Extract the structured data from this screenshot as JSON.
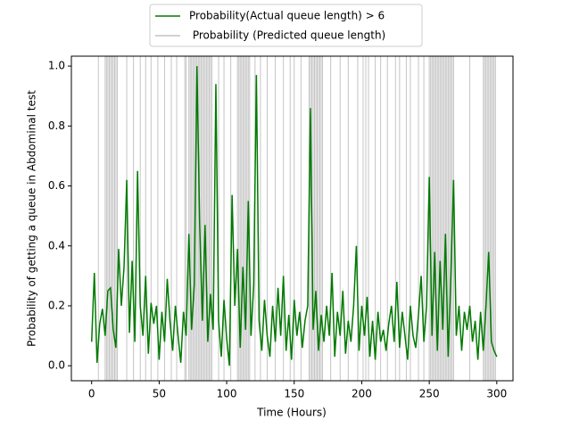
{
  "chart_data": {
    "type": "line",
    "xlabel": "Time (Hours)",
    "ylabel": "Probability of getting a queue in Abdominal test",
    "xlim": [
      -15,
      312
    ],
    "ylim": [
      -0.05,
      1.033
    ],
    "xticks": [
      0,
      50,
      100,
      150,
      200,
      250,
      300
    ],
    "yticks": [
      {
        "value": 0,
        "label": "0.0"
      },
      0.2,
      0.4,
      0.6,
      0.8,
      {
        "value": 1,
        "label": "1.0"
      }
    ],
    "legend": "upper center",
    "series": [
      {
        "name": "Probability(Actual queue length) > 6",
        "color": "#007a00",
        "x": [
          0,
          2,
          4,
          6,
          8,
          10,
          12,
          14,
          16,
          18,
          20,
          22,
          24,
          26,
          28,
          30,
          32,
          34,
          36,
          38,
          40,
          42,
          44,
          46,
          48,
          50,
          52,
          54,
          56,
          58,
          60,
          62,
          64,
          66,
          68,
          70,
          72,
          74,
          76,
          78,
          80,
          82,
          84,
          86,
          88,
          90,
          92,
          94,
          96,
          98,
          100,
          102,
          104,
          106,
          108,
          110,
          112,
          114,
          116,
          118,
          120,
          122,
          124,
          126,
          128,
          130,
          132,
          134,
          136,
          138,
          140,
          142,
          144,
          146,
          148,
          150,
          152,
          154,
          156,
          158,
          160,
          162,
          164,
          166,
          168,
          170,
          172,
          174,
          176,
          178,
          180,
          182,
          184,
          186,
          188,
          190,
          192,
          194,
          196,
          198,
          200,
          202,
          204,
          206,
          208,
          210,
          212,
          214,
          216,
          218,
          220,
          222,
          224,
          226,
          228,
          230,
          232,
          234,
          236,
          238,
          240,
          242,
          244,
          246,
          248,
          250,
          252,
          254,
          256,
          258,
          260,
          262,
          264,
          266,
          268,
          270,
          272,
          274,
          276,
          278,
          280,
          282,
          284,
          286,
          288,
          290,
          292,
          294,
          296,
          298,
          300
        ],
        "values": [
          0.08,
          0.31,
          0.01,
          0.14,
          0.19,
          0.1,
          0.25,
          0.26,
          0.12,
          0.06,
          0.39,
          0.2,
          0.33,
          0.62,
          0.11,
          0.35,
          0.08,
          0.65,
          0.2,
          0.1,
          0.3,
          0.04,
          0.21,
          0.14,
          0.2,
          0.02,
          0.18,
          0.08,
          0.29,
          0.15,
          0.05,
          0.2,
          0.1,
          0.01,
          0.18,
          0.1,
          0.44,
          0.12,
          0.27,
          1.0,
          0.47,
          0.15,
          0.47,
          0.08,
          0.24,
          0.12,
          0.94,
          0.15,
          0.03,
          0.22,
          0.09,
          0.0,
          0.57,
          0.2,
          0.39,
          0.06,
          0.33,
          0.12,
          0.55,
          0.1,
          0.27,
          0.97,
          0.15,
          0.05,
          0.22,
          0.1,
          0.03,
          0.2,
          0.08,
          0.26,
          0.1,
          0.3,
          0.05,
          0.17,
          0.02,
          0.22,
          0.1,
          0.18,
          0.06,
          0.15,
          0.2,
          0.86,
          0.12,
          0.25,
          0.05,
          0.17,
          0.08,
          0.2,
          0.1,
          0.31,
          0.03,
          0.18,
          0.1,
          0.25,
          0.04,
          0.15,
          0.08,
          0.2,
          0.4,
          0.05,
          0.2,
          0.1,
          0.23,
          0.03,
          0.15,
          0.02,
          0.18,
          0.08,
          0.12,
          0.05,
          0.14,
          0.2,
          0.08,
          0.28,
          0.06,
          0.18,
          0.1,
          0.02,
          0.2,
          0.1,
          0.06,
          0.17,
          0.3,
          0.08,
          0.2,
          0.63,
          0.1,
          0.38,
          0.05,
          0.35,
          0.12,
          0.44,
          0.03,
          0.3,
          0.62,
          0.1,
          0.2,
          0.05,
          0.18,
          0.12,
          0.2,
          0.08,
          0.15,
          0.02,
          0.18,
          0.05,
          0.2,
          0.38,
          0.08,
          0.05,
          0.03
        ]
      }
    ],
    "vlines": {
      "name": " Probability (Predicted queue length)",
      "color": "#c4c4c4",
      "x": [
        5,
        10,
        11,
        12,
        13,
        14,
        15,
        16,
        17,
        18,
        19,
        26,
        31,
        36,
        40,
        44,
        49,
        54,
        59,
        63,
        69,
        70,
        72,
        73,
        74,
        75,
        76,
        77,
        78,
        79,
        80,
        81,
        82,
        83,
        84,
        85,
        86,
        87,
        88,
        89,
        94,
        98,
        103,
        108,
        109,
        110,
        111,
        112,
        113,
        114,
        115,
        116,
        117,
        121,
        125,
        130,
        136,
        142,
        147,
        150,
        155,
        161,
        162,
        163,
        164,
        165,
        166,
        167,
        168,
        169,
        170,
        171,
        177,
        184,
        190,
        197,
        201,
        203,
        205,
        210,
        214,
        219,
        225,
        228,
        233,
        236,
        242,
        246,
        250,
        251,
        252,
        253,
        254,
        255,
        256,
        257,
        258,
        259,
        260,
        261,
        262,
        263,
        264,
        265,
        266,
        267,
        268,
        280,
        290,
        291,
        292,
        293,
        294,
        295,
        296,
        297,
        298,
        299
      ]
    }
  }
}
